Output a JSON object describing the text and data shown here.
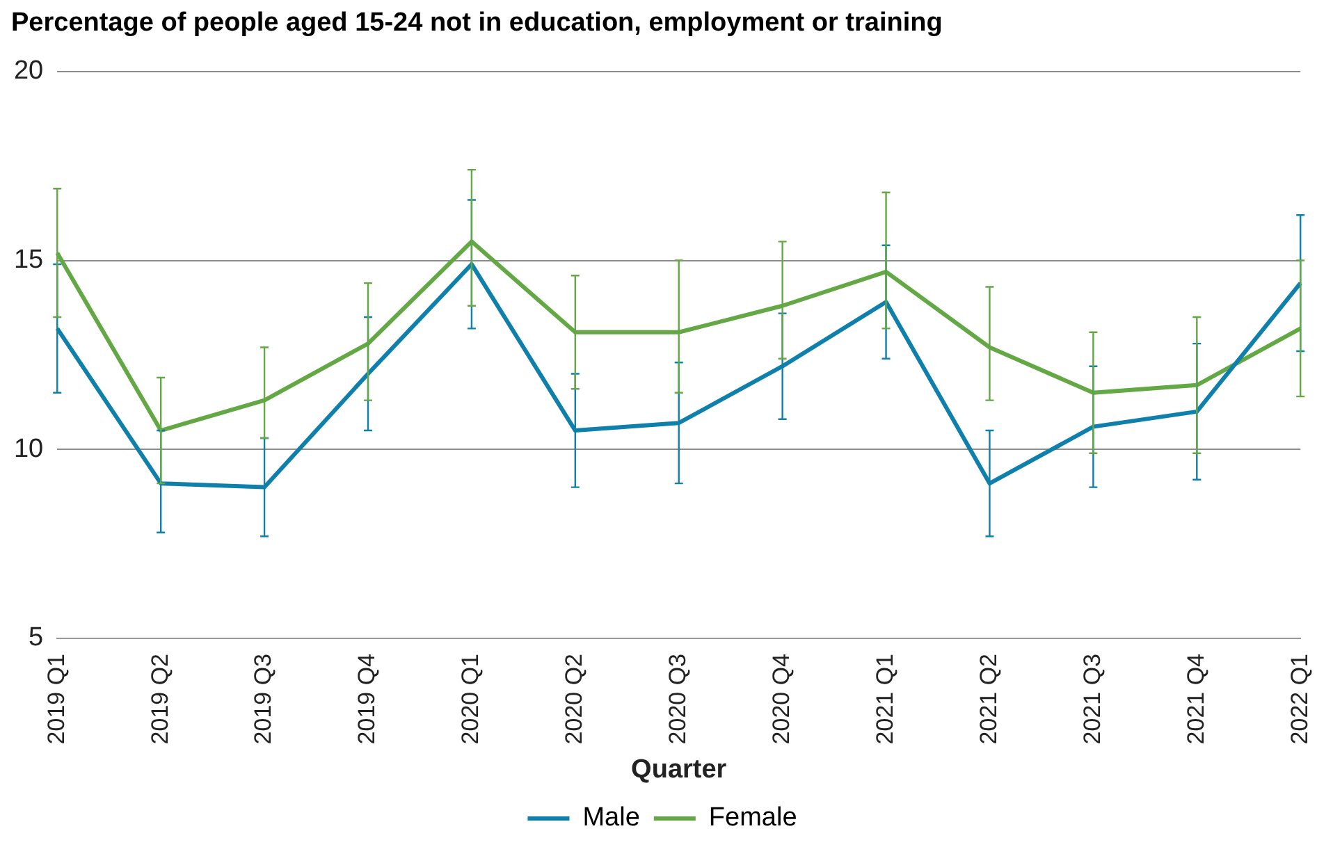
{
  "chart_data": {
    "type": "line",
    "title": "Percentage of people aged 15-24 not in education, employment or training",
    "xlabel": "Quarter",
    "categories": [
      "2019 Q1",
      "2019 Q2",
      "2019 Q3",
      "2019 Q4",
      "2020 Q1",
      "2020 Q2",
      "2020 Q3",
      "2020 Q4",
      "2021 Q1",
      "2021 Q2",
      "2021 Q3",
      "2021 Q4",
      "2022 Q1"
    ],
    "series": [
      {
        "name": "Male",
        "color": "#0f7fab",
        "values": [
          13.2,
          9.1,
          9.0,
          12.0,
          14.9,
          10.5,
          10.7,
          12.2,
          13.9,
          9.1,
          10.6,
          11.0,
          14.4
        ],
        "errors": [
          [
            11.5,
            14.9
          ],
          [
            7.8,
            10.5
          ],
          [
            7.7,
            10.3
          ],
          [
            10.5,
            13.5
          ],
          [
            13.2,
            16.6
          ],
          [
            9.0,
            12.0
          ],
          [
            9.1,
            12.3
          ],
          [
            10.8,
            13.6
          ],
          [
            12.4,
            15.4
          ],
          [
            7.7,
            10.5
          ],
          [
            9.0,
            12.2
          ],
          [
            9.2,
            12.8
          ],
          [
            12.6,
            16.2
          ]
        ]
      },
      {
        "name": "Female",
        "color": "#63a844",
        "values": [
          15.2,
          10.5,
          11.3,
          12.8,
          15.5,
          13.1,
          13.1,
          13.8,
          14.7,
          12.7,
          11.5,
          11.7,
          13.2
        ],
        "errors": [
          [
            13.5,
            16.9
          ],
          [
            9.1,
            11.9
          ],
          [
            10.3,
            12.7
          ],
          [
            11.3,
            14.4
          ],
          [
            13.8,
            17.4
          ],
          [
            11.6,
            14.6
          ],
          [
            11.5,
            15.0
          ],
          [
            12.4,
            15.5
          ],
          [
            13.2,
            16.8
          ],
          [
            11.3,
            14.3
          ],
          [
            9.9,
            13.1
          ],
          [
            9.9,
            13.5
          ],
          [
            11.4,
            15.0
          ]
        ]
      }
    ],
    "ylim": [
      5,
      20
    ],
    "yticks": [
      5,
      10,
      15,
      20
    ],
    "grid": "y",
    "legend": "bottom",
    "marker": "none",
    "line_style": "solid"
  }
}
